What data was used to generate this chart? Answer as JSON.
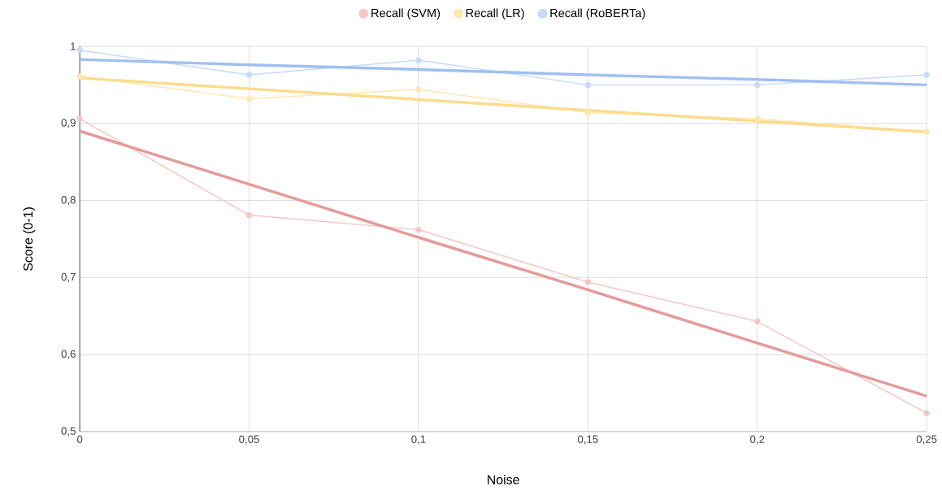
{
  "chart_data": {
    "type": "line",
    "xlabel": "Noise",
    "ylabel": "Score (0-1)",
    "x": [
      0,
      0.05,
      0.1,
      0.15,
      0.2,
      0.25
    ],
    "series": [
      {
        "name": "Recall (SVM)",
        "color": "#f4c7c3",
        "values": [
          0.906,
          0.781,
          0.762,
          0.694,
          0.643,
          0.524
        ]
      },
      {
        "name": "Recall (LR)",
        "color": "#fce8b2",
        "values": [
          0.961,
          0.932,
          0.944,
          0.914,
          0.906,
          0.889
        ]
      },
      {
        "name": "Recall (RoBERTa)",
        "color": "#c6dafc",
        "values": [
          0.995,
          0.963,
          0.982,
          0.95,
          0.95,
          0.963
        ]
      },
      {
        "type": "line",
        "marker": "none",
        "color": "#e69a99",
        "values": [
          0.89,
          0.821,
          0.752,
          0.684,
          0.615,
          0.546
        ]
      },
      {
        "type": "line",
        "marker": "none",
        "color": "#fcdc8c",
        "values": [
          0.959,
          0.945,
          0.931,
          0.917,
          0.903,
          0.889
        ]
      },
      {
        "type": "line",
        "marker": "none",
        "color": "#a0bff2",
        "values": [
          0.983,
          0.976,
          0.97,
          0.963,
          0.957,
          0.95
        ]
      }
    ],
    "xlim": [
      0,
      0.25
    ],
    "ylim": [
      0.5,
      1
    ],
    "xticks": [
      0,
      {
        "value": 0.05,
        "label": "0,05"
      },
      {
        "value": 0.1,
        "label": "0,1"
      },
      {
        "value": 0.15,
        "label": "0,15"
      },
      {
        "value": 0.2,
        "label": "0,2"
      },
      {
        "value": 0.25,
        "label": "0,25"
      }
    ],
    "yticks": [
      {
        "value": 0.5,
        "label": "0,5"
      },
      {
        "value": 0.6,
        "label": "0,6"
      },
      {
        "value": 0.7,
        "label": "0,7"
      },
      {
        "value": 0.8,
        "label": "0,8"
      },
      {
        "value": 0.9,
        "label": "0,9"
      },
      1
    ],
    "grid": true,
    "legend": "top",
    "marker": "circle",
    "line_style": "solid"
  }
}
